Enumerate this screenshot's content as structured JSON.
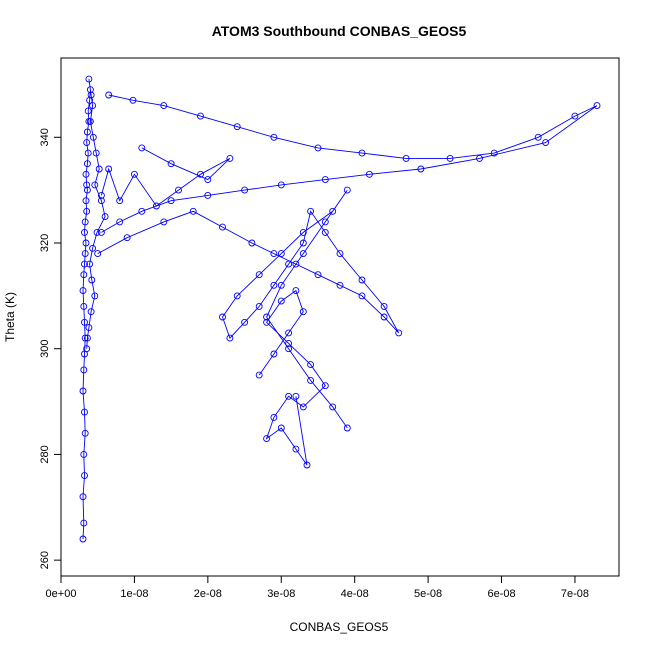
{
  "chart_data": {
    "type": "line",
    "title": "ATOM3 Southbound CONBAS_GEOS5",
    "xlabel": "CONBAS_GEOS5",
    "ylabel": "Theta (K)",
    "xlim": [
      0,
      7.6e-08
    ],
    "ylim": [
      257,
      355
    ],
    "x_ticks": [
      0,
      1e-08,
      2e-08,
      3e-08,
      4e-08,
      5e-08,
      6e-08,
      7e-08
    ],
    "x_tick_labels": [
      "0e+00",
      "1e-08",
      "2e-08",
      "3e-08",
      "4e-08",
      "5e-08",
      "6e-08",
      "7e-08"
    ],
    "y_ticks": [
      260,
      280,
      300,
      320,
      340
    ],
    "y_tick_labels": [
      "260",
      "280",
      "300",
      "320",
      "340"
    ],
    "grid": false,
    "series_color": "#0000ff",
    "series": [
      {
        "x": [
          3e-09,
          3.1e-09,
          3e-09,
          3.2e-09,
          3.1e-09,
          3.3e-09,
          3.2e-09,
          3e-09,
          3.1e-09,
          3.2e-09,
          3.3e-09,
          3.2e-09,
          3.1e-09,
          3e-09,
          3.1e-09,
          3.2e-09,
          3.3e-09,
          3.4e-09,
          3.2e-09,
          3.3e-09,
          3.5e-09,
          3.4e-09,
          3.6e-09,
          3.5e-09,
          3.4e-09,
          3.6e-09,
          3.7e-09,
          3.5e-09,
          3.6e-09,
          3.8e-09,
          3.7e-09,
          3.9e-09,
          4e-09,
          3.8e-09,
          4.1e-09,
          4.3e-09,
          4e-09,
          4.4e-09,
          4.8e-09,
          5.2e-09,
          4.6e-09,
          5.5e-09,
          6e-09,
          4.9e-09,
          4.3e-09,
          3.9e-09,
          4.2e-09,
          4.6e-09,
          4.1e-09,
          3.8e-09,
          3.6e-09,
          3.5e-09
        ],
        "y": [
          264,
          267,
          272,
          276,
          280,
          284,
          288,
          292,
          296,
          299,
          302,
          305,
          308,
          311,
          314,
          316,
          318,
          320,
          322,
          324,
          326,
          328,
          330,
          331,
          333,
          335,
          337,
          339,
          341,
          343,
          345,
          347,
          349,
          351,
          348,
          346,
          343,
          340,
          337,
          334,
          331,
          328,
          325,
          322,
          319,
          316,
          313,
          310,
          307,
          304,
          302,
          300
        ]
      },
      {
        "x": [
          6.5e-09,
          9.8e-09,
          1.4e-08,
          1.9e-08,
          2.4e-08,
          2.9e-08,
          3.5e-08,
          4.1e-08,
          4.7e-08,
          5.3e-08,
          5.9e-08,
          6.5e-08,
          7e-08,
          7.3e-08,
          6.6e-08,
          5.7e-08,
          4.9e-08,
          4.2e-08,
          3.6e-08,
          3e-08,
          2.5e-08,
          2e-08,
          1.5e-08,
          1.1e-08,
          8e-09,
          5.5e-09
        ],
        "y": [
          348,
          347,
          346,
          344,
          342,
          340,
          338,
          337,
          336,
          336,
          337,
          340,
          344,
          346,
          339,
          336,
          334,
          333,
          332,
          331,
          330,
          329,
          328,
          326,
          324,
          322
        ]
      },
      {
        "x": [
          5e-09,
          9e-09,
          1.4e-08,
          1.8e-08,
          2.2e-08,
          2.6e-08,
          2.9e-08,
          3.2e-08,
          3.5e-08,
          3.8e-08,
          4.1e-08,
          4.4e-08,
          4.6e-08,
          4.4e-08,
          4.1e-08,
          3.8e-08,
          3.6e-08,
          3.4e-08,
          3.3e-08,
          3.1e-08,
          2.9e-08,
          2.7e-08,
          2.5e-08,
          2.3e-08,
          2.2e-08,
          2.4e-08,
          2.7e-08,
          3e-08,
          3.3e-08,
          3.7e-08,
          3.9e-08,
          3.6e-08,
          3.3e-08,
          3e-08,
          2.8e-08,
          3.1e-08,
          3.4e-08,
          3.7e-08,
          3.9e-08
        ],
        "y": [
          318,
          321,
          324,
          326,
          323,
          320,
          318,
          316,
          314,
          312,
          310,
          306,
          303,
          308,
          313,
          318,
          322,
          326,
          320,
          316,
          312,
          308,
          305,
          302,
          306,
          310,
          314,
          318,
          322,
          326,
          330,
          324,
          318,
          312,
          306,
          300,
          294,
          289,
          285
        ]
      },
      {
        "x": [
          2.7e-08,
          2.9e-08,
          3.1e-08,
          3.3e-08,
          3.2e-08,
          3e-08,
          2.8e-08,
          3.1e-08,
          3.4e-08,
          3.6e-08,
          3.3e-08,
          3.1e-08,
          2.9e-08,
          2.8e-08,
          3e-08,
          3.2e-08,
          3.35e-08,
          3.2e-08
        ],
        "y": [
          295,
          299,
          303,
          307,
          311,
          309,
          305,
          301,
          297,
          293,
          289,
          291,
          287,
          283,
          285,
          281,
          278,
          291
        ]
      },
      {
        "x": [
          1.1e-08,
          1.5e-08,
          2e-08,
          2.3e-08,
          1.9e-08,
          1.6e-08,
          1.3e-08,
          1e-08,
          8e-09,
          6.5e-09,
          5.5e-09
        ],
        "y": [
          338,
          335,
          332,
          336,
          333,
          330,
          327,
          333,
          328,
          334,
          329
        ]
      }
    ]
  }
}
